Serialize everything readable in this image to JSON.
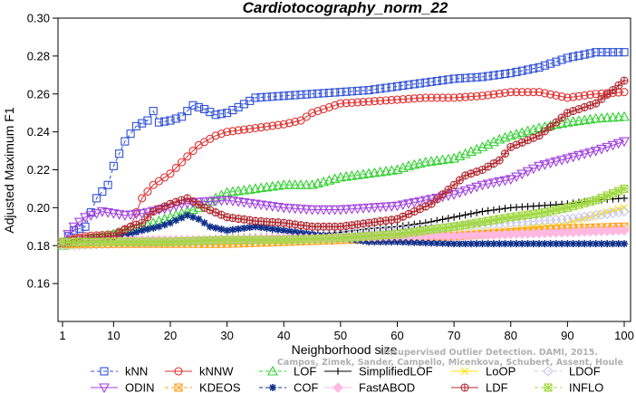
{
  "chart_data": {
    "type": "line",
    "title": "Cardiotocography_norm_22",
    "xlabel": "Neighborhood size",
    "ylabel": "Adjusted Maximum F1",
    "xlim": [
      0,
      100
    ],
    "ylim": [
      0.14,
      0.3
    ],
    "xticks": [
      1,
      10,
      20,
      30,
      40,
      50,
      60,
      70,
      80,
      90,
      100
    ],
    "yticks": [
      0.16,
      0.18,
      0.2,
      0.22,
      0.24,
      0.26,
      0.28,
      0.3
    ],
    "ytick_labels": [
      "0.16",
      "0.18",
      "0.20",
      "0.22",
      "0.24",
      "0.26",
      "0.28",
      "0.30"
    ],
    "grid": false,
    "legend_position": "bottom",
    "watermark": [
      "Unsupervised Outlier Detection. DAMI, 2015.",
      "Campos, Zimek, Sander, Campello, Micenkova, Schubert, Assent, Houle"
    ],
    "series": [
      {
        "name": "kNN",
        "color": "#2f4fd8",
        "marker": "square",
        "dash": "4,3",
        "points": [
          [
            1,
            0.182
          ],
          [
            3,
            0.188
          ],
          [
            5,
            0.19
          ],
          [
            7,
            0.205
          ],
          [
            9,
            0.212
          ],
          [
            10,
            0.222
          ],
          [
            12,
            0.235
          ],
          [
            14,
            0.243
          ],
          [
            16,
            0.246
          ],
          [
            17,
            0.251
          ],
          [
            18,
            0.245
          ],
          [
            20,
            0.246
          ],
          [
            22,
            0.248
          ],
          [
            24,
            0.254
          ],
          [
            26,
            0.252
          ],
          [
            28,
            0.249
          ],
          [
            30,
            0.25
          ],
          [
            32,
            0.253
          ],
          [
            35,
            0.258
          ],
          [
            40,
            0.259
          ],
          [
            45,
            0.26
          ],
          [
            50,
            0.261
          ],
          [
            55,
            0.262
          ],
          [
            60,
            0.264
          ],
          [
            65,
            0.266
          ],
          [
            70,
            0.268
          ],
          [
            75,
            0.269
          ],
          [
            80,
            0.271
          ],
          [
            85,
            0.274
          ],
          [
            90,
            0.279
          ],
          [
            95,
            0.282
          ],
          [
            100,
            0.282
          ]
        ]
      },
      {
        "name": "kNNW",
        "color": "#e03030",
        "marker": "circle",
        "dash": "",
        "points": [
          [
            1,
            0.182
          ],
          [
            5,
            0.185
          ],
          [
            10,
            0.186
          ],
          [
            13,
            0.19
          ],
          [
            15,
            0.205
          ],
          [
            17,
            0.212
          ],
          [
            20,
            0.218
          ],
          [
            23,
            0.227
          ],
          [
            25,
            0.233
          ],
          [
            28,
            0.238
          ],
          [
            30,
            0.24
          ],
          [
            35,
            0.242
          ],
          [
            40,
            0.244
          ],
          [
            43,
            0.246
          ],
          [
            45,
            0.25
          ],
          [
            50,
            0.255
          ],
          [
            55,
            0.256
          ],
          [
            60,
            0.257
          ],
          [
            65,
            0.258
          ],
          [
            70,
            0.258
          ],
          [
            75,
            0.259
          ],
          [
            80,
            0.261
          ],
          [
            85,
            0.261
          ],
          [
            90,
            0.258
          ],
          [
            95,
            0.26
          ],
          [
            100,
            0.261
          ]
        ]
      },
      {
        "name": "LOF",
        "color": "#30d030",
        "marker": "triangle-up",
        "dash": "4,3",
        "points": [
          [
            1,
            0.18
          ],
          [
            5,
            0.183
          ],
          [
            10,
            0.186
          ],
          [
            15,
            0.19
          ],
          [
            20,
            0.195
          ],
          [
            25,
            0.2
          ],
          [
            28,
            0.205
          ],
          [
            30,
            0.208
          ],
          [
            35,
            0.21
          ],
          [
            40,
            0.212
          ],
          [
            45,
            0.212
          ],
          [
            50,
            0.216
          ],
          [
            55,
            0.218
          ],
          [
            60,
            0.22
          ],
          [
            62,
            0.222
          ],
          [
            65,
            0.224
          ],
          [
            70,
            0.226
          ],
          [
            75,
            0.232
          ],
          [
            78,
            0.236
          ],
          [
            80,
            0.238
          ],
          [
            85,
            0.242
          ],
          [
            90,
            0.245
          ],
          [
            95,
            0.247
          ],
          [
            100,
            0.248
          ]
        ]
      },
      {
        "name": "SimplifiedLOF",
        "color": "#000000",
        "marker": "plus",
        "dash": "",
        "points": [
          [
            1,
            0.181
          ],
          [
            10,
            0.182
          ],
          [
            20,
            0.183
          ],
          [
            30,
            0.184
          ],
          [
            40,
            0.185
          ],
          [
            50,
            0.187
          ],
          [
            55,
            0.189
          ],
          [
            60,
            0.19
          ],
          [
            65,
            0.192
          ],
          [
            70,
            0.195
          ],
          [
            75,
            0.198
          ],
          [
            80,
            0.2
          ],
          [
            85,
            0.201
          ],
          [
            90,
            0.202
          ],
          [
            95,
            0.204
          ],
          [
            100,
            0.205
          ]
        ]
      },
      {
        "name": "LoOP",
        "color": "#ffe000",
        "marker": "x",
        "dash": "",
        "points": [
          [
            1,
            0.18
          ],
          [
            10,
            0.181
          ],
          [
            20,
            0.181
          ],
          [
            30,
            0.182
          ],
          [
            40,
            0.182
          ],
          [
            50,
            0.183
          ],
          [
            60,
            0.184
          ],
          [
            70,
            0.186
          ],
          [
            80,
            0.188
          ],
          [
            90,
            0.192
          ],
          [
            95,
            0.196
          ],
          [
            100,
            0.2
          ]
        ]
      },
      {
        "name": "LDOF",
        "color": "#c8c8ee",
        "marker": "diamond",
        "dash": "4,3",
        "points": [
          [
            1,
            0.18
          ],
          [
            10,
            0.181
          ],
          [
            20,
            0.182
          ],
          [
            30,
            0.183
          ],
          [
            40,
            0.184
          ],
          [
            50,
            0.186
          ],
          [
            60,
            0.188
          ],
          [
            70,
            0.19
          ],
          [
            80,
            0.192
          ],
          [
            90,
            0.194
          ],
          [
            95,
            0.196
          ],
          [
            100,
            0.198
          ]
        ]
      },
      {
        "name": "ODIN",
        "color": "#a040e0",
        "marker": "triangle-down",
        "dash": "",
        "points": [
          [
            1,
            0.182
          ],
          [
            3,
            0.19
          ],
          [
            5,
            0.195
          ],
          [
            8,
            0.198
          ],
          [
            10,
            0.197
          ],
          [
            12,
            0.196
          ],
          [
            15,
            0.197
          ],
          [
            18,
            0.199
          ],
          [
            20,
            0.2
          ],
          [
            22,
            0.202
          ],
          [
            25,
            0.203
          ],
          [
            30,
            0.204
          ],
          [
            35,
            0.202
          ],
          [
            40,
            0.2
          ],
          [
            45,
            0.199
          ],
          [
            50,
            0.199
          ],
          [
            55,
            0.2
          ],
          [
            60,
            0.201
          ],
          [
            65,
            0.204
          ],
          [
            70,
            0.207
          ],
          [
            75,
            0.212
          ],
          [
            80,
            0.215
          ],
          [
            85,
            0.222
          ],
          [
            90,
            0.226
          ],
          [
            95,
            0.23
          ],
          [
            100,
            0.235
          ]
        ]
      },
      {
        "name": "KDEOS",
        "color": "#ffa020",
        "marker": "square-x",
        "dash": "4,3",
        "points": [
          [
            1,
            0.181
          ],
          [
            10,
            0.181
          ],
          [
            20,
            0.181
          ],
          [
            30,
            0.181
          ],
          [
            40,
            0.182
          ],
          [
            50,
            0.183
          ],
          [
            60,
            0.184
          ],
          [
            70,
            0.185
          ],
          [
            80,
            0.187
          ],
          [
            90,
            0.189
          ],
          [
            100,
            0.19
          ]
        ]
      },
      {
        "name": "COF",
        "color": "#10308a",
        "marker": "asterisk",
        "dash": "4,3",
        "points": [
          [
            1,
            0.181
          ],
          [
            5,
            0.182
          ],
          [
            10,
            0.184
          ],
          [
            13,
            0.186
          ],
          [
            15,
            0.188
          ],
          [
            18,
            0.19
          ],
          [
            20,
            0.192
          ],
          [
            23,
            0.196
          ],
          [
            25,
            0.194
          ],
          [
            27,
            0.19
          ],
          [
            30,
            0.188
          ],
          [
            35,
            0.19
          ],
          [
            40,
            0.188
          ],
          [
            45,
            0.186
          ],
          [
            50,
            0.184
          ],
          [
            55,
            0.182
          ],
          [
            60,
            0.182
          ],
          [
            70,
            0.181
          ],
          [
            80,
            0.181
          ],
          [
            90,
            0.181
          ],
          [
            100,
            0.181
          ]
        ]
      },
      {
        "name": "FastABOD",
        "color": "#ffb8e0",
        "marker": "diamond-filled",
        "dash": "",
        "points": [
          [
            1,
            0.182
          ],
          [
            10,
            0.183
          ],
          [
            20,
            0.183
          ],
          [
            30,
            0.183
          ],
          [
            40,
            0.184
          ],
          [
            50,
            0.184
          ],
          [
            60,
            0.185
          ],
          [
            70,
            0.185
          ],
          [
            80,
            0.186
          ],
          [
            90,
            0.187
          ],
          [
            100,
            0.188
          ]
        ]
      },
      {
        "name": "LDF",
        "color": "#b02830",
        "marker": "circle-plus",
        "dash": "",
        "points": [
          [
            1,
            0.182
          ],
          [
            5,
            0.184
          ],
          [
            10,
            0.185
          ],
          [
            13,
            0.19
          ],
          [
            15,
            0.192
          ],
          [
            17,
            0.198
          ],
          [
            20,
            0.202
          ],
          [
            23,
            0.205
          ],
          [
            26,
            0.2
          ],
          [
            30,
            0.195
          ],
          [
            35,
            0.193
          ],
          [
            40,
            0.192
          ],
          [
            45,
            0.19
          ],
          [
            50,
            0.19
          ],
          [
            55,
            0.192
          ],
          [
            60,
            0.194
          ],
          [
            63,
            0.198
          ],
          [
            66,
            0.202
          ],
          [
            70,
            0.212
          ],
          [
            72,
            0.217
          ],
          [
            75,
            0.22
          ],
          [
            78,
            0.225
          ],
          [
            80,
            0.232
          ],
          [
            85,
            0.238
          ],
          [
            88,
            0.245
          ],
          [
            90,
            0.25
          ],
          [
            92,
            0.252
          ],
          [
            95,
            0.255
          ],
          [
            98,
            0.262
          ],
          [
            100,
            0.267
          ]
        ]
      },
      {
        "name": "INFLO",
        "color": "#a0d840",
        "marker": "square-star",
        "dash": "4,3",
        "points": [
          [
            1,
            0.182
          ],
          [
            10,
            0.182
          ],
          [
            20,
            0.182
          ],
          [
            30,
            0.183
          ],
          [
            40,
            0.183
          ],
          [
            50,
            0.184
          ],
          [
            60,
            0.186
          ],
          [
            70,
            0.19
          ],
          [
            80,
            0.195
          ],
          [
            85,
            0.197
          ],
          [
            90,
            0.2
          ],
          [
            95,
            0.204
          ],
          [
            100,
            0.21
          ]
        ]
      }
    ]
  },
  "legend": {
    "rows": [
      [
        "kNN",
        "kNNW",
        "LOF",
        "SimplifiedLOF",
        "LoOP",
        "LDOF"
      ],
      [
        "ODIN",
        "KDEOS",
        "COF",
        "FastABOD",
        "LDF",
        "INFLO"
      ]
    ]
  }
}
